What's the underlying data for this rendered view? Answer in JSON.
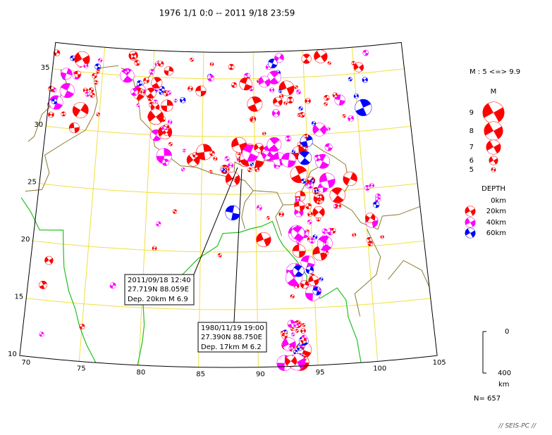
{
  "header": {
    "title": "1976 1/1 0:0 -- 2011 9/18 23:59"
  },
  "map": {
    "lat_labels": [
      "35",
      "30",
      "25",
      "20",
      "15",
      "10"
    ],
    "lon_labels": [
      "70",
      "75",
      "80",
      "85",
      "90",
      "95",
      "100",
      "105"
    ]
  },
  "annotations": [
    {
      "lines": [
        "2011/09/18 12:40",
        "27.719N  88.059E",
        "Dep. 20km    M 6.9"
      ]
    },
    {
      "lines": [
        "1980/11/19 19:00",
        "27.390N  88.750E",
        "Dep. 17km    M 6.2"
      ]
    }
  ],
  "legend": {
    "range": "M : 5 <=> 9.9",
    "m_title": "M",
    "magnitudes": [
      "9",
      "8",
      "7",
      "6",
      "5"
    ],
    "depth_title": "DEPTH",
    "depths": [
      "0km",
      "20km",
      "40km",
      "60km"
    ],
    "scale_top": "0",
    "scale_bottom": "400",
    "scale_unit": "km"
  },
  "footer": {
    "count": "N= 657",
    "brand": "// SEIS-PC //"
  }
}
